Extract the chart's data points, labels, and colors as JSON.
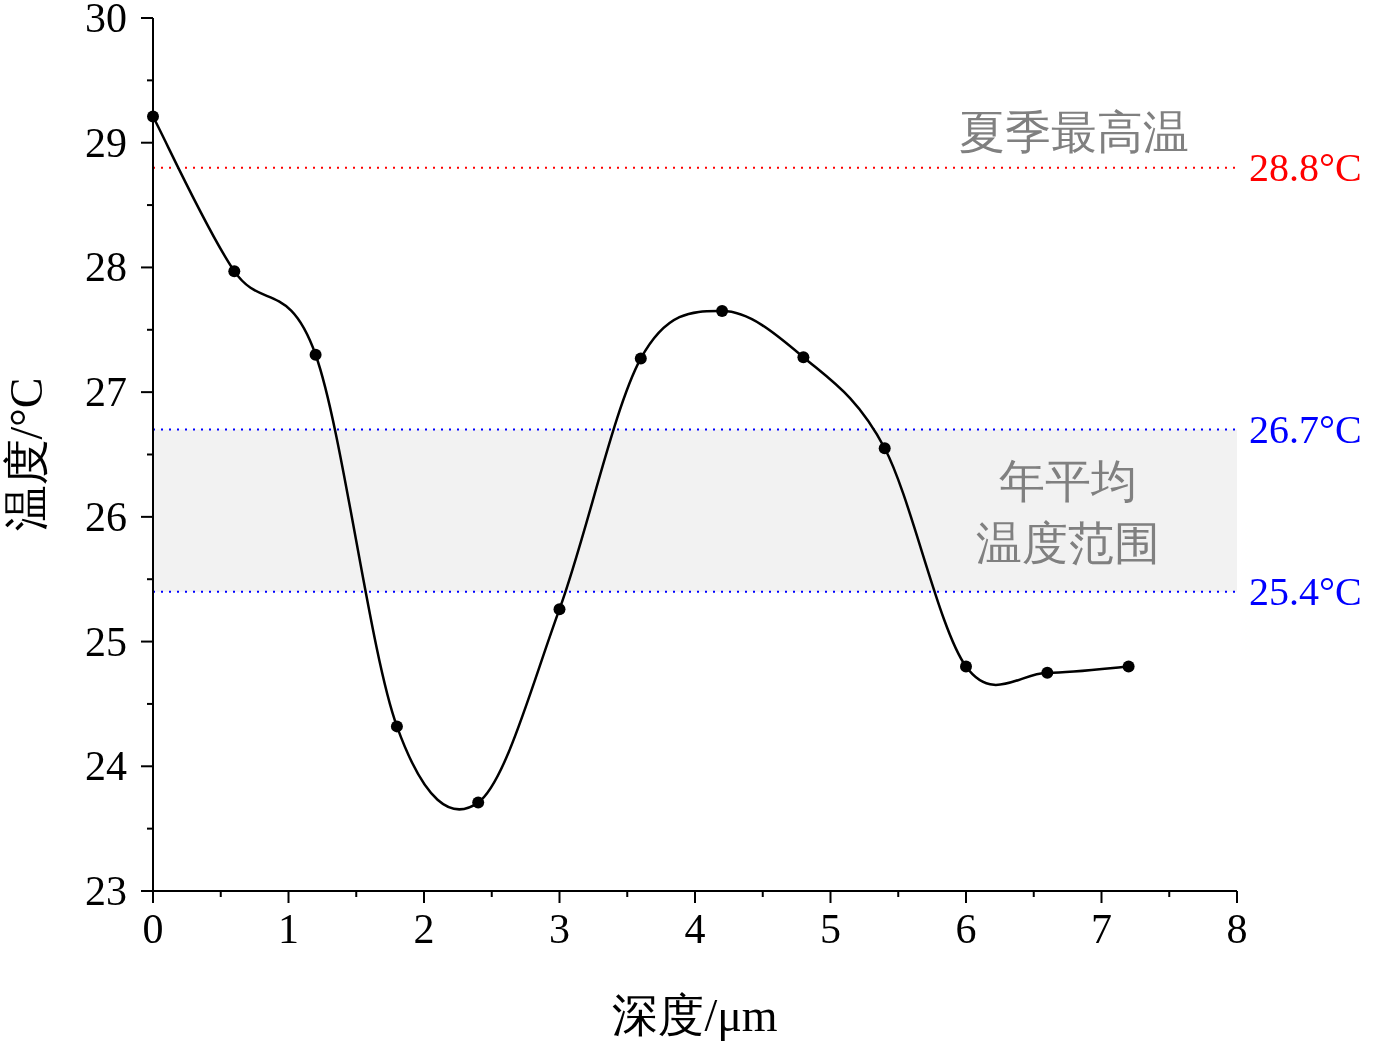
{
  "chart_data": {
    "type": "line",
    "xlabel": "深度/μm",
    "ylabel": "温度/°C",
    "x": [
      0,
      0.6,
      1.2,
      1.8,
      2.4,
      3.0,
      3.6,
      4.2,
      4.8,
      5.4,
      6.0,
      6.6,
      7.2
    ],
    "series": [
      {
        "color": "#000000",
        "values": [
          29.21,
          27.97,
          27.3,
          24.32,
          23.71,
          25.26,
          27.27,
          27.65,
          27.28,
          26.55,
          24.8,
          24.75,
          24.8
        ]
      }
    ],
    "marker": "circle",
    "line_style": "solid",
    "xlim": [
      0,
      8
    ],
    "ylim": [
      23,
      30
    ],
    "xticks": [
      0,
      {
        "value": 0.5,
        "label": null
      },
      1,
      {
        "value": 1.5,
        "label": null
      },
      2,
      {
        "value": 2.5,
        "label": null
      },
      3,
      {
        "value": 3.5,
        "label": null
      },
      4,
      {
        "value": 4.5,
        "label": null
      },
      5,
      {
        "value": 5.5,
        "label": null
      },
      6,
      {
        "value": 6.5,
        "label": null
      },
      7,
      {
        "value": 7.5,
        "label": null
      },
      8
    ],
    "yticks": [
      23,
      {
        "value": 23.5,
        "label": null
      },
      24,
      {
        "value": 24.5,
        "label": null
      },
      25,
      {
        "value": 25.5,
        "label": null
      },
      26,
      {
        "value": 26.5,
        "label": null
      },
      27,
      {
        "value": 27.5,
        "label": null
      },
      28,
      {
        "value": 28.5,
        "label": null
      },
      29,
      {
        "value": 29.5,
        "label": null
      },
      30
    ],
    "ref_lines": [
      {
        "axis": "y",
        "value": 28.8,
        "label": "28.8°C",
        "color": "#ff0000",
        "line_style": "dotted"
      },
      {
        "axis": "y",
        "value": 26.7,
        "label": "26.7°C",
        "color": "#0000ff",
        "line_style": "dotted"
      },
      {
        "axis": "y",
        "value": 25.4,
        "label": "25.4°C",
        "color": "#0000ff",
        "line_style": "dotted"
      }
    ],
    "bands": [
      {
        "axis": "y",
        "from": 25.4,
        "to": 26.7,
        "label": "年平均温度范围",
        "color": "#f2f2f2"
      }
    ],
    "annotations": [
      {
        "text": "夏季最高温",
        "x": 6.8,
        "y": 28.8
      }
    ]
  }
}
